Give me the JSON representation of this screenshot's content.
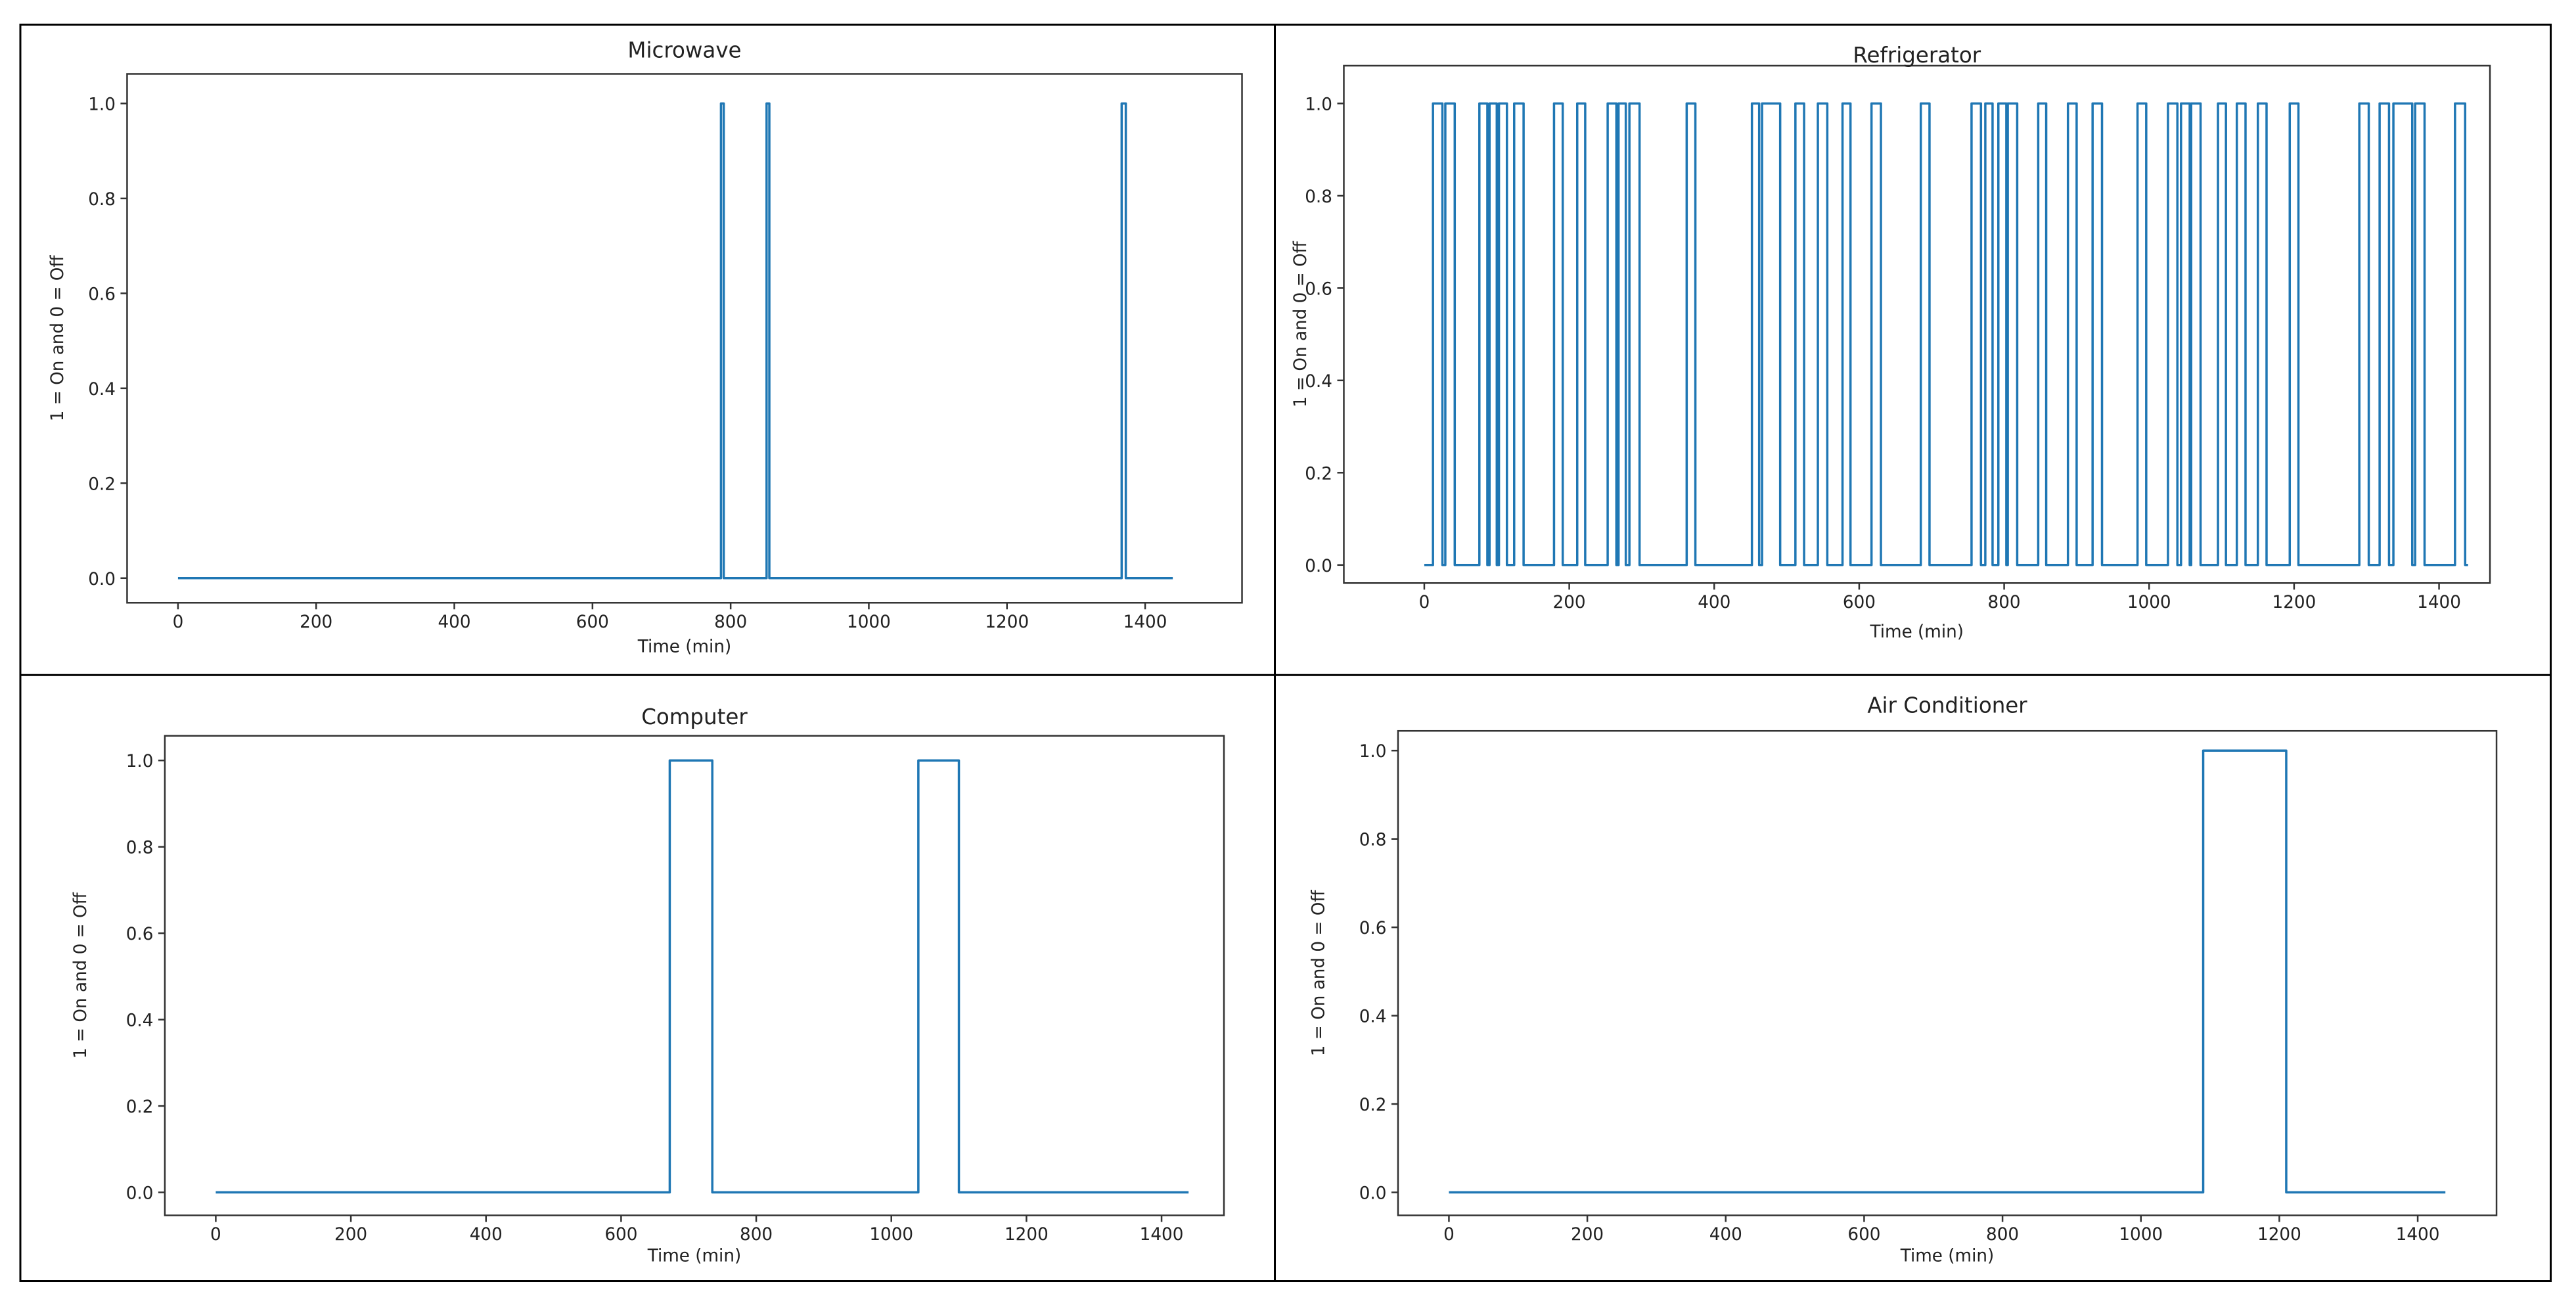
{
  "chart_data": [
    {
      "type": "line",
      "title": "Microwave",
      "xlabel": "Time (min)",
      "ylabel": "1 = On and 0 = Off",
      "xlim": [
        0,
        1440
      ],
      "ylim": [
        0,
        1
      ],
      "xticks": [
        0,
        200,
        400,
        600,
        800,
        1000,
        1200,
        1400
      ],
      "yticks": [
        "0.0",
        "0.2",
        "0.4",
        "0.6",
        "0.8",
        "1.0"
      ],
      "grid": false,
      "color": "#1f77b4",
      "on_intervals": [
        [
          786,
          790
        ],
        [
          852,
          856
        ],
        [
          1366,
          1372
        ]
      ]
    },
    {
      "type": "line",
      "title": "Refrigerator",
      "xlabel": "Time (min)",
      "ylabel": "1 = On and 0 = Off",
      "xlim": [
        0,
        1440
      ],
      "ylim": [
        0,
        1
      ],
      "xticks": [
        0,
        200,
        400,
        600,
        800,
        1000,
        1200,
        1400
      ],
      "yticks": [
        "0.0",
        "0.2",
        "0.4",
        "0.6",
        "0.8",
        "1.0"
      ],
      "grid": false,
      "color": "#1f77b4",
      "on_intervals": [
        [
          12,
          25
        ],
        [
          29,
          42
        ],
        [
          76,
          87
        ],
        [
          90,
          100
        ],
        [
          103,
          114
        ],
        [
          124,
          137
        ],
        [
          179,
          191
        ],
        [
          211,
          222
        ],
        [
          253,
          265
        ],
        [
          268,
          278
        ],
        [
          283,
          297
        ],
        [
          362,
          374
        ],
        [
          452,
          462
        ],
        [
          466,
          491
        ],
        [
          512,
          524
        ],
        [
          543,
          556
        ],
        [
          577,
          588
        ],
        [
          617,
          630
        ],
        [
          685,
          697
        ],
        [
          755,
          768
        ],
        [
          774,
          784
        ],
        [
          792,
          803
        ],
        [
          805,
          818
        ],
        [
          847,
          858
        ],
        [
          888,
          900
        ],
        [
          922,
          935
        ],
        [
          984,
          996
        ],
        [
          1026,
          1039
        ],
        [
          1044,
          1056
        ],
        [
          1058,
          1071
        ],
        [
          1095,
          1106
        ],
        [
          1121,
          1133
        ],
        [
          1150,
          1162
        ],
        [
          1194,
          1206
        ],
        [
          1290,
          1303
        ],
        [
          1318,
          1331
        ],
        [
          1337,
          1363
        ],
        [
          1367,
          1380
        ],
        [
          1422,
          1436
        ]
      ]
    },
    {
      "type": "line",
      "title": "Computer",
      "xlabel": "Time (min)",
      "ylabel": "1 = On and 0 = Off",
      "xlim": [
        0,
        1440
      ],
      "ylim": [
        0,
        1
      ],
      "xticks": [
        0,
        200,
        400,
        600,
        800,
        1000,
        1200,
        1400
      ],
      "yticks": [
        "0.0",
        "0.2",
        "0.4",
        "0.6",
        "0.8",
        "1.0"
      ],
      "grid": false,
      "color": "#1f77b4",
      "on_intervals": [
        [
          672,
          735
        ],
        [
          1040,
          1100
        ]
      ]
    },
    {
      "type": "line",
      "title": "Air Conditioner",
      "xlabel": "Time (min)",
      "ylabel": "1 = On and 0 = Off",
      "xlim": [
        0,
        1440
      ],
      "ylim": [
        0,
        1
      ],
      "xticks": [
        0,
        200,
        400,
        600,
        800,
        1000,
        1200,
        1400
      ],
      "yticks": [
        "0.0",
        "0.2",
        "0.4",
        "0.6",
        "0.8",
        "1.0"
      ],
      "grid": false,
      "color": "#1f77b4",
      "on_intervals": [
        [
          1090,
          1210
        ]
      ]
    }
  ]
}
